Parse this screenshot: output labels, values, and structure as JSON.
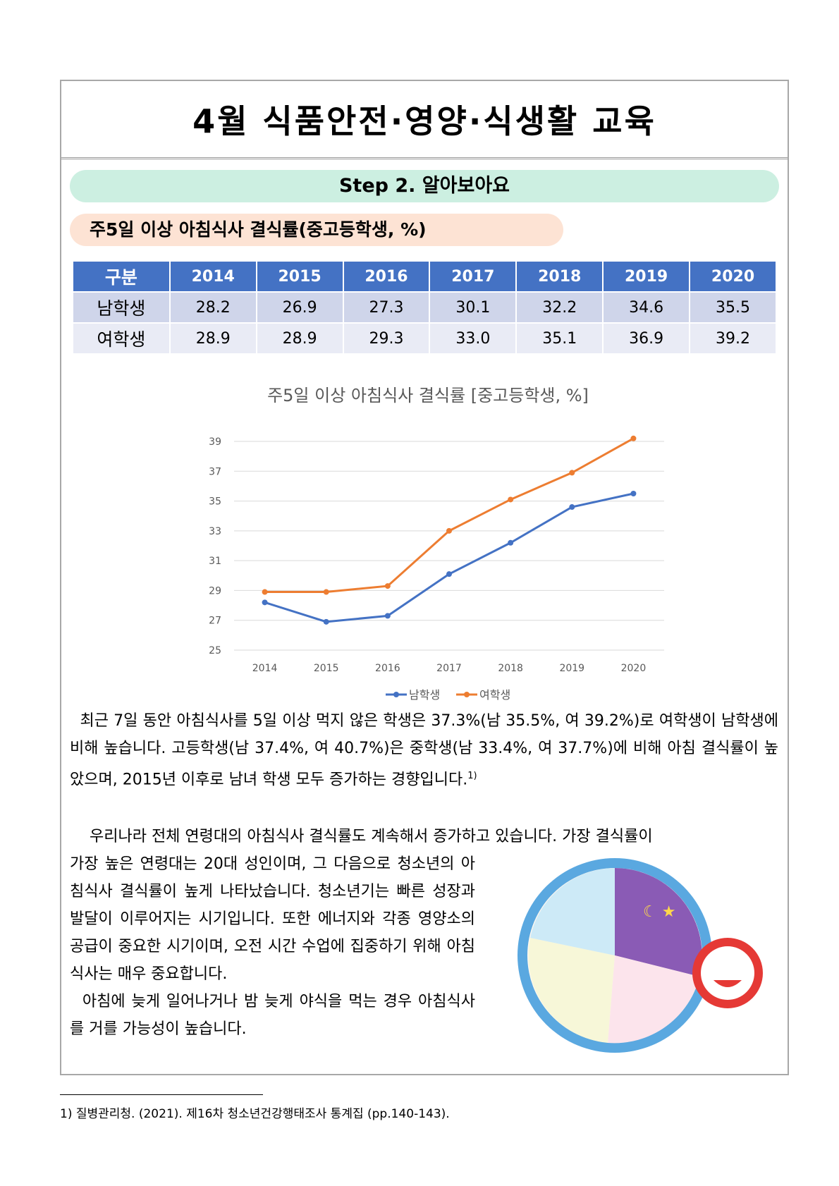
{
  "title": "4월 식품안전·영양·식생활 교육",
  "step": "Step 2. 알아보아요",
  "subtitle": "주5일 이상 아침식사 결식률(중고등학생, %)",
  "table": {
    "headers": [
      "구분",
      "2014",
      "2015",
      "2016",
      "2017",
      "2018",
      "2019",
      "2020"
    ],
    "rows": [
      [
        "남학생",
        "28.2",
        "26.9",
        "27.3",
        "30.1",
        "32.2",
        "34.6",
        "35.5"
      ],
      [
        "여학생",
        "28.9",
        "28.9",
        "29.3",
        "33.0",
        "35.1",
        "36.9",
        "39.2"
      ]
    ]
  },
  "chart_data": {
    "type": "line",
    "title": "주5일 이상 아침식사 결식률 [중고등학생, %]",
    "categories": [
      "2014",
      "2015",
      "2016",
      "2017",
      "2018",
      "2019",
      "2020"
    ],
    "series": [
      {
        "name": "남학생",
        "color": "#4472c4",
        "values": [
          28.2,
          26.9,
          27.3,
          30.1,
          32.2,
          34.6,
          35.5
        ]
      },
      {
        "name": "여학생",
        "color": "#ed7d31",
        "values": [
          28.9,
          28.9,
          29.3,
          33.0,
          35.1,
          36.9,
          39.2
        ]
      }
    ],
    "yticks": [
      "25",
      "27",
      "29",
      "31",
      "33",
      "35",
      "37",
      "39"
    ],
    "ylim": [
      25,
      39
    ],
    "grid": true,
    "legend": "bottom"
  },
  "paragraph1": "최근 7일 동안 아침식사를 5일 이상 먹지 않은 학생은 37.3%(남 35.5%, 여 39.2%)로 여학생이 남학생에 비해 높습니다. 고등학생(남 37.4%, 여 40.7%)은 중학생(남 33.4%, 여 37.7%)에 비해 아침 결식률이 높았으며, 2015년 이후로 남녀 학생 모두 증가하는 경향입니다.",
  "footnote_mark": "1)",
  "paragraph2_lead": "우리나라 전체 연령대의 아침식사 결식률도 계속해서 증가하고 있습니다. 가장 결식률이",
  "paragraph2_rest": "가장 높은 연령대는 20대 성인이며, 그 다음으로 청소년의 아침식사 결식률이 높게 나타났습니다. 청소년기는 빠른 성장과 발달이 이루어지는 시기입니다. 또한 에너지와 각종 영양소의 공급이 중요한 시기이며, 오전 시간 수업에 집중하기 위해 아침식사는 매우 중요합니다.",
  "paragraph3": "아침에 늦게 일어나거나 밤 늦게 야식을 먹는 경우 아침식사를 거를 가능성이 높습니다.",
  "footnote": "1) 질병관리청. (2021). 제16차 청소년건강행태조사 통계집 (pp.140-143)."
}
